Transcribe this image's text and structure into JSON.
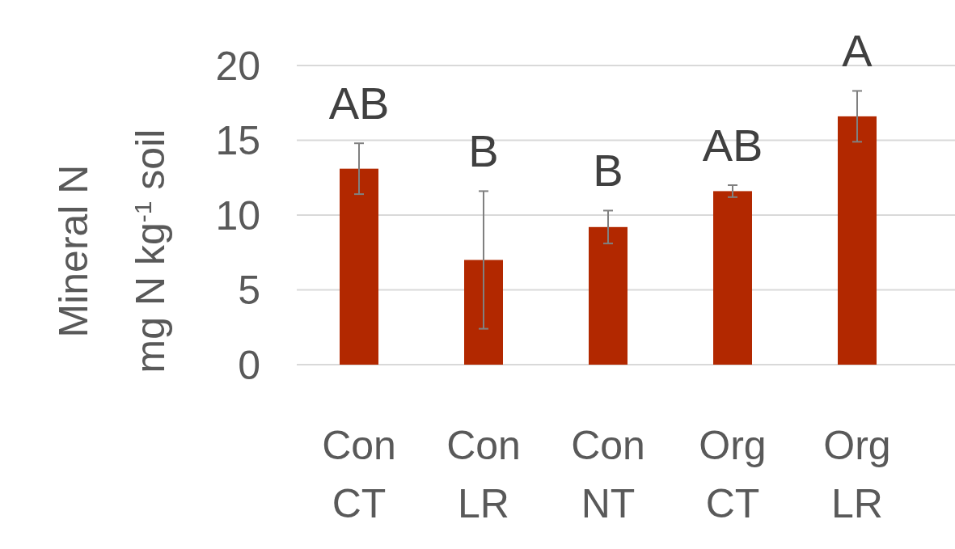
{
  "chart_data": {
    "type": "bar",
    "ylabel": "Mineral N\nmg  N kg$^{-1}$ soil",
    "categories": [
      "Con CT",
      "Con LR",
      "Con NT",
      "Org CT",
      "Org LR"
    ],
    "values": [
      13.1,
      7.0,
      9.2,
      11.6,
      16.6
    ],
    "errors": [
      1.7,
      4.6,
      1.1,
      0.4,
      1.7
    ],
    "color": "#b22800",
    "ylim": [
      0,
      20
    ],
    "yticks": [
      0,
      5,
      10,
      15,
      20
    ],
    "grid": "y",
    "annotations": [
      "AB",
      "B",
      "B",
      "AB",
      "A"
    ]
  }
}
